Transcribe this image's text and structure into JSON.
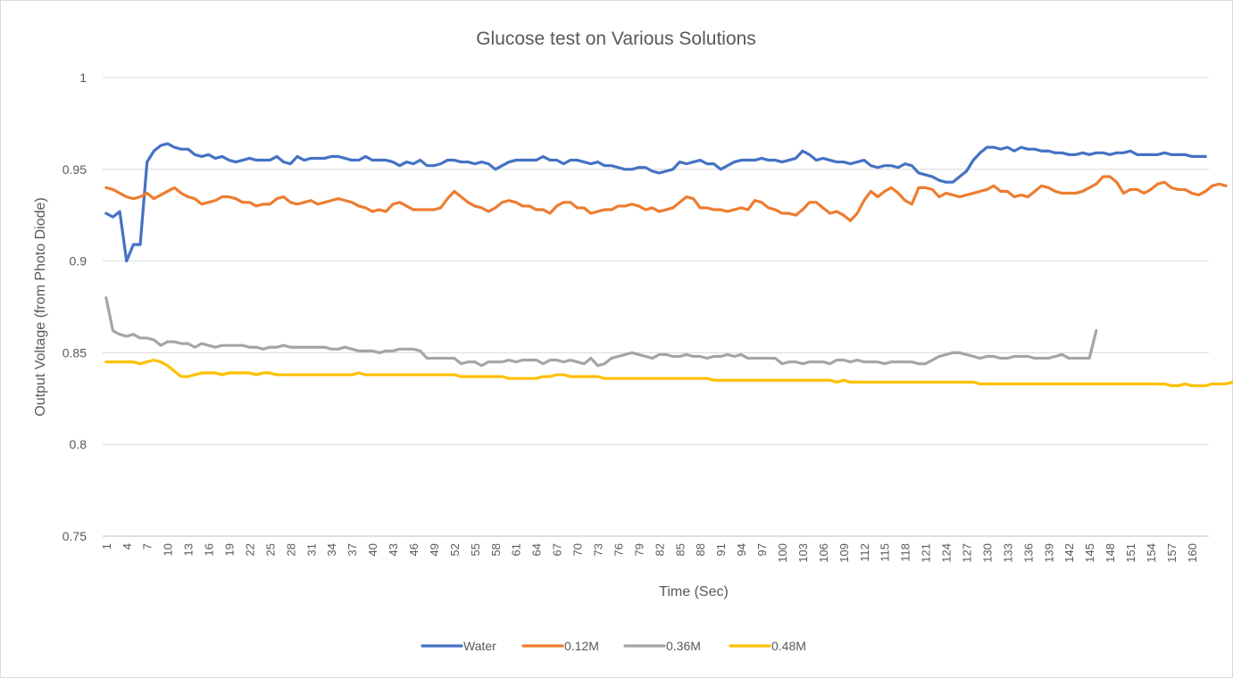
{
  "chart_data": {
    "type": "line",
    "title": "Glucose test on Various Solutions",
    "xlabel": "Time (Sec)",
    "ylabel": "Output Voltage (from Photo Diode)",
    "ylim": [
      0.75,
      1
    ],
    "yticks": [
      0.75,
      0.8,
      0.85,
      0.9,
      0.95,
      1
    ],
    "ytick_labels": [
      "0.75",
      "0.8",
      "0.85",
      "0.9",
      "0.95",
      "1"
    ],
    "x_range": [
      1,
      162
    ],
    "xtick_step": 3,
    "grid": "horizontal",
    "legend_position": "bottom",
    "series": [
      {
        "name": "Water",
        "color": "#4472C4",
        "values": [
          0.926,
          0.924,
          0.927,
          0.9,
          0.909,
          0.909,
          0.954,
          0.96,
          0.963,
          0.964,
          0.962,
          0.961,
          0.961,
          0.958,
          0.957,
          0.958,
          0.956,
          0.957,
          0.955,
          0.954,
          0.955,
          0.956,
          0.955,
          0.955,
          0.955,
          0.957,
          0.954,
          0.953,
          0.957,
          0.955,
          0.956,
          0.956,
          0.956,
          0.957,
          0.957,
          0.956,
          0.955,
          0.955,
          0.957,
          0.955,
          0.955,
          0.955,
          0.954,
          0.952,
          0.954,
          0.953,
          0.955,
          0.952,
          0.952,
          0.953,
          0.955,
          0.955,
          0.954,
          0.954,
          0.953,
          0.954,
          0.953,
          0.95,
          0.952,
          0.954,
          0.955,
          0.955,
          0.955,
          0.955,
          0.957,
          0.955,
          0.955,
          0.953,
          0.955,
          0.955,
          0.954,
          0.953,
          0.954,
          0.952,
          0.952,
          0.951,
          0.95,
          0.95,
          0.951,
          0.951,
          0.949,
          0.948,
          0.949,
          0.95,
          0.954,
          0.953,
          0.954,
          0.955,
          0.953,
          0.953,
          0.95,
          0.952,
          0.954,
          0.955,
          0.955,
          0.955,
          0.956,
          0.955,
          0.955,
          0.954,
          0.955,
          0.956,
          0.96,
          0.958,
          0.955,
          0.956,
          0.955,
          0.954,
          0.954,
          0.953,
          0.954,
          0.955,
          0.952,
          0.951,
          0.952,
          0.952,
          0.951,
          0.953,
          0.952,
          0.948,
          0.947,
          0.946,
          0.944,
          0.943,
          0.943,
          0.946,
          0.949,
          0.955,
          0.959,
          0.962,
          0.962,
          0.961,
          0.962,
          0.96,
          0.962,
          0.961,
          0.961,
          0.96,
          0.96,
          0.959,
          0.959,
          0.958,
          0.958,
          0.959,
          0.958,
          0.959,
          0.959,
          0.958,
          0.959,
          0.959,
          0.96,
          0.958,
          0.958,
          0.958,
          0.958,
          0.959,
          0.958,
          0.958,
          0.958,
          0.957,
          0.957,
          0.957
        ]
      },
      {
        "name": "0.12M",
        "color": "#ED7D31",
        "values": [
          0.94,
          0.939,
          0.937,
          0.935,
          0.934,
          0.935,
          0.937,
          0.934,
          0.936,
          0.938,
          0.94,
          0.937,
          0.935,
          0.934,
          0.931,
          0.932,
          0.933,
          0.935,
          0.935,
          0.934,
          0.932,
          0.932,
          0.93,
          0.931,
          0.931,
          0.934,
          0.935,
          0.932,
          0.931,
          0.932,
          0.933,
          0.931,
          0.932,
          0.933,
          0.934,
          0.933,
          0.932,
          0.93,
          0.929,
          0.927,
          0.928,
          0.927,
          0.931,
          0.932,
          0.93,
          0.928,
          0.928,
          0.928,
          0.928,
          0.929,
          0.934,
          0.938,
          0.935,
          0.932,
          0.93,
          0.929,
          0.927,
          0.929,
          0.932,
          0.933,
          0.932,
          0.93,
          0.93,
          0.928,
          0.928,
          0.926,
          0.93,
          0.932,
          0.932,
          0.929,
          0.929,
          0.926,
          0.927,
          0.928,
          0.928,
          0.93,
          0.93,
          0.931,
          0.93,
          0.928,
          0.929,
          0.927,
          0.928,
          0.929,
          0.932,
          0.935,
          0.934,
          0.929,
          0.929,
          0.928,
          0.928,
          0.927,
          0.928,
          0.929,
          0.928,
          0.933,
          0.932,
          0.929,
          0.928,
          0.926,
          0.926,
          0.925,
          0.928,
          0.932,
          0.932,
          0.929,
          0.926,
          0.927,
          0.925,
          0.922,
          0.926,
          0.933,
          0.938,
          0.935,
          0.938,
          0.94,
          0.937,
          0.933,
          0.931,
          0.94,
          0.94,
          0.939,
          0.935,
          0.937,
          0.936,
          0.935,
          0.936,
          0.937,
          0.938,
          0.939,
          0.941,
          0.938,
          0.938,
          0.935,
          0.936,
          0.935,
          0.938,
          0.941,
          0.94,
          0.938,
          0.937,
          0.937,
          0.937,
          0.938,
          0.94,
          0.942,
          0.946,
          0.946,
          0.943,
          0.937,
          0.939,
          0.939,
          0.937,
          0.939,
          0.942,
          0.943,
          0.94,
          0.939,
          0.939,
          0.937,
          0.936,
          0.938,
          0.941,
          0.942,
          0.941
        ]
      },
      {
        "name": "0.36M",
        "color": "#A5A5A5",
        "values": [
          0.88,
          0.862,
          0.86,
          0.859,
          0.86,
          0.858,
          0.858,
          0.857,
          0.854,
          0.856,
          0.856,
          0.855,
          0.855,
          0.853,
          0.855,
          0.854,
          0.853,
          0.854,
          0.854,
          0.854,
          0.854,
          0.853,
          0.853,
          0.852,
          0.853,
          0.853,
          0.854,
          0.853,
          0.853,
          0.853,
          0.853,
          0.853,
          0.853,
          0.852,
          0.852,
          0.853,
          0.852,
          0.851,
          0.851,
          0.851,
          0.85,
          0.851,
          0.851,
          0.852,
          0.852,
          0.852,
          0.851,
          0.847,
          0.847,
          0.847,
          0.847,
          0.847,
          0.844,
          0.845,
          0.845,
          0.843,
          0.845,
          0.845,
          0.845,
          0.846,
          0.845,
          0.846,
          0.846,
          0.846,
          0.844,
          0.846,
          0.846,
          0.845,
          0.846,
          0.845,
          0.844,
          0.847,
          0.843,
          0.844,
          0.847,
          0.848,
          0.849,
          0.85,
          0.849,
          0.848,
          0.847,
          0.849,
          0.849,
          0.848,
          0.848,
          0.849,
          0.848,
          0.848,
          0.847,
          0.848,
          0.848,
          0.849,
          0.848,
          0.849,
          0.847,
          0.847,
          0.847,
          0.847,
          0.847,
          0.844,
          0.845,
          0.845,
          0.844,
          0.845,
          0.845,
          0.845,
          0.844,
          0.846,
          0.846,
          0.845,
          0.846,
          0.845,
          0.845,
          0.845,
          0.844,
          0.845,
          0.845,
          0.845,
          0.845,
          0.844,
          0.844,
          0.846,
          0.848,
          0.849,
          0.85,
          0.85,
          0.849,
          0.848,
          0.847,
          0.848,
          0.848,
          0.847,
          0.847,
          0.848,
          0.848,
          0.848,
          0.847,
          0.847,
          0.847,
          0.848,
          0.849,
          0.847,
          0.847,
          0.847,
          0.847,
          0.862
        ]
      },
      {
        "name": "0.48M",
        "color": "#FFC000",
        "values": [
          0.845,
          0.845,
          0.845,
          0.845,
          0.845,
          0.844,
          0.845,
          0.846,
          0.845,
          0.843,
          0.84,
          0.837,
          0.837,
          0.838,
          0.839,
          0.839,
          0.839,
          0.838,
          0.839,
          0.839,
          0.839,
          0.839,
          0.838,
          0.839,
          0.839,
          0.838,
          0.838,
          0.838,
          0.838,
          0.838,
          0.838,
          0.838,
          0.838,
          0.838,
          0.838,
          0.838,
          0.838,
          0.839,
          0.838,
          0.838,
          0.838,
          0.838,
          0.838,
          0.838,
          0.838,
          0.838,
          0.838,
          0.838,
          0.838,
          0.838,
          0.838,
          0.838,
          0.837,
          0.837,
          0.837,
          0.837,
          0.837,
          0.837,
          0.837,
          0.836,
          0.836,
          0.836,
          0.836,
          0.836,
          0.837,
          0.837,
          0.838,
          0.838,
          0.837,
          0.837,
          0.837,
          0.837,
          0.837,
          0.836,
          0.836,
          0.836,
          0.836,
          0.836,
          0.836,
          0.836,
          0.836,
          0.836,
          0.836,
          0.836,
          0.836,
          0.836,
          0.836,
          0.836,
          0.836,
          0.835,
          0.835,
          0.835,
          0.835,
          0.835,
          0.835,
          0.835,
          0.835,
          0.835,
          0.835,
          0.835,
          0.835,
          0.835,
          0.835,
          0.835,
          0.835,
          0.835,
          0.835,
          0.834,
          0.835,
          0.834,
          0.834,
          0.834,
          0.834,
          0.834,
          0.834,
          0.834,
          0.834,
          0.834,
          0.834,
          0.834,
          0.834,
          0.834,
          0.834,
          0.834,
          0.834,
          0.834,
          0.834,
          0.834,
          0.833,
          0.833,
          0.833,
          0.833,
          0.833,
          0.833,
          0.833,
          0.833,
          0.833,
          0.833,
          0.833,
          0.833,
          0.833,
          0.833,
          0.833,
          0.833,
          0.833,
          0.833,
          0.833,
          0.833,
          0.833,
          0.833,
          0.833,
          0.833,
          0.833,
          0.833,
          0.833,
          0.833,
          0.832,
          0.832,
          0.833,
          0.832,
          0.832,
          0.832,
          0.833,
          0.833,
          0.833,
          0.834
        ]
      }
    ]
  }
}
